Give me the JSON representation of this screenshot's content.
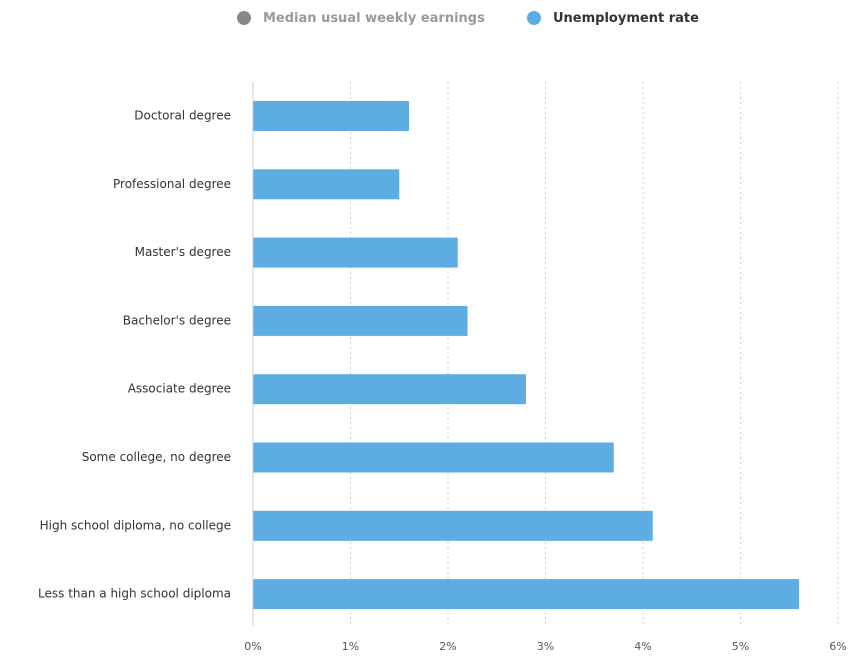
{
  "legend": [
    {
      "label": "Median usual weekly earnings",
      "color": "#888888",
      "text_color": "#9a9a9a",
      "state": "hidden"
    },
    {
      "label": "Unemployment rate",
      "color": "#5dade2",
      "text_color": "#333333",
      "state": "visible"
    }
  ],
  "chart_data": {
    "type": "bar",
    "orientation": "horizontal",
    "categories": [
      "Doctoral degree",
      "Professional degree",
      "Master's degree",
      "Bachelor's degree",
      "Associate degree",
      "Some college, no degree",
      "High school diploma, no college",
      "Less than a high school diploma"
    ],
    "series": [
      {
        "name": "Unemployment rate",
        "color": "#5dade2",
        "values": [
          1.6,
          1.5,
          2.1,
          2.2,
          2.8,
          3.7,
          4.1,
          5.6
        ]
      }
    ],
    "xlim": [
      0,
      6
    ],
    "xticks": [
      "0%",
      "1%",
      "2%",
      "3%",
      "4%",
      "5%",
      "6%"
    ],
    "grid": "vertical-dotted",
    "legend_position": "top-center"
  }
}
